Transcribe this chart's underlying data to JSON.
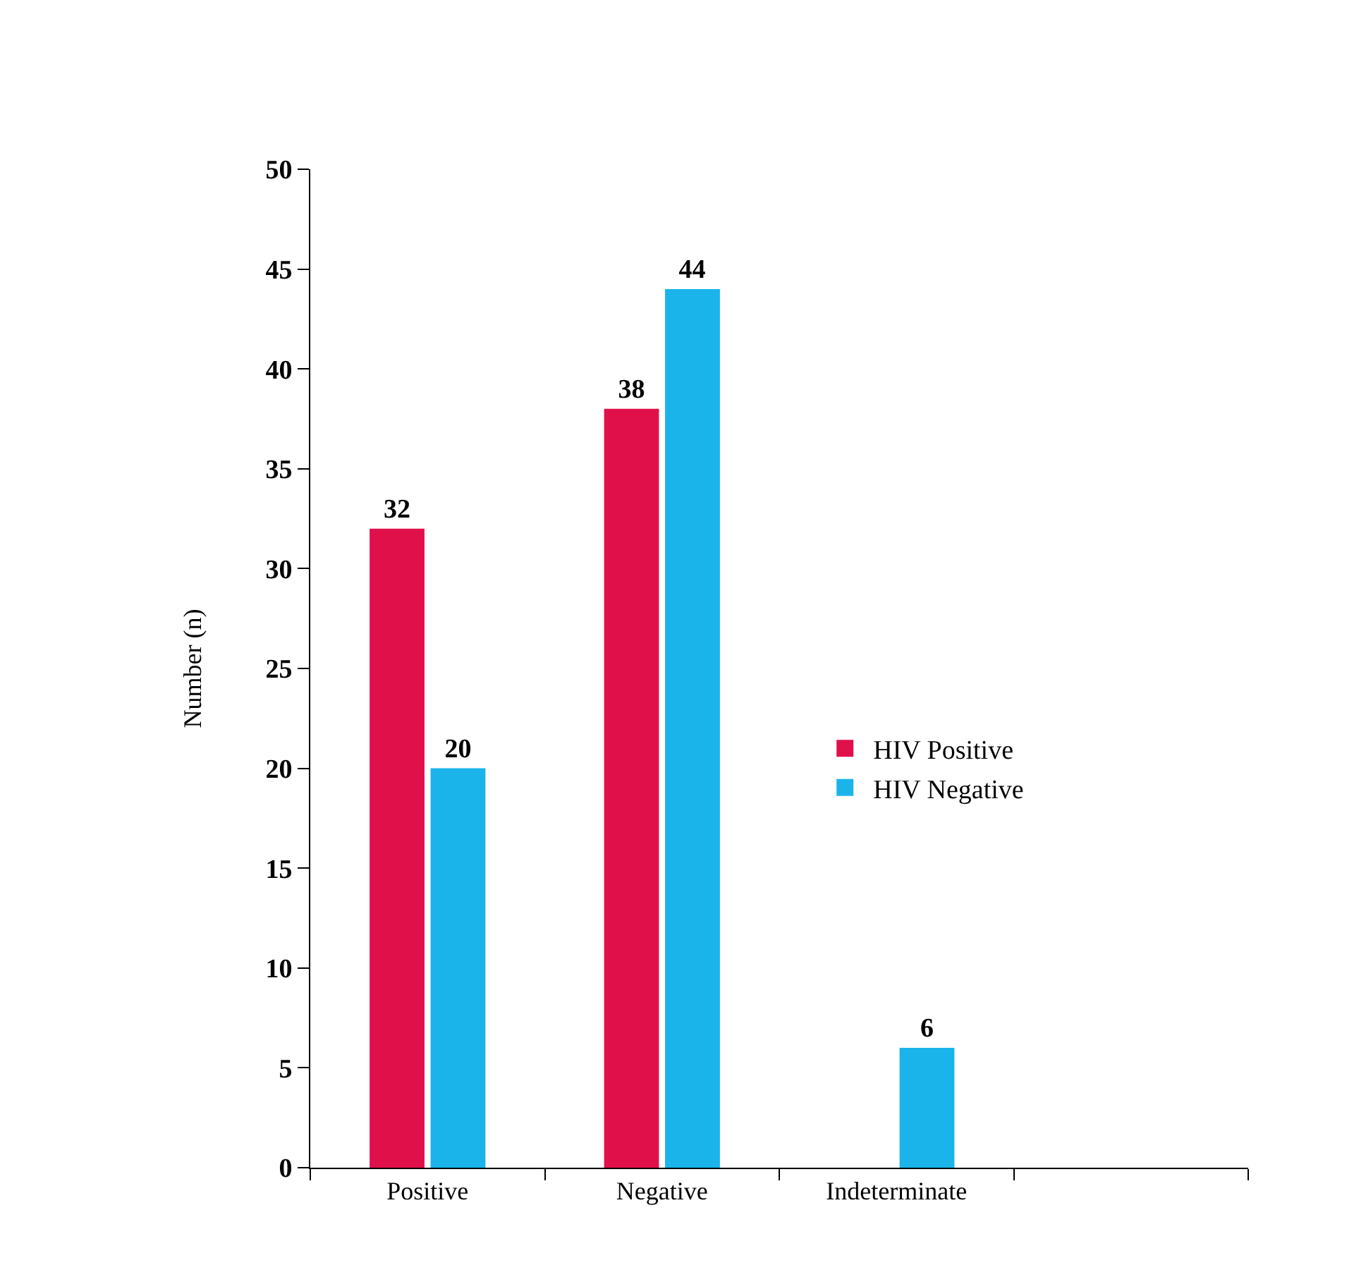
{
  "chart_data": {
    "type": "bar",
    "ylabel": "Number (n)",
    "categories": [
      "Positive",
      "Negative",
      "Indeterminate",
      null
    ],
    "series": [
      {
        "name": "HIV Positive",
        "color": "#e0104a",
        "values": [
          32,
          38,
          null,
          null
        ]
      },
      {
        "name": "HIV Negative",
        "color": "#1ab4ea",
        "values": [
          20,
          44,
          6,
          null
        ]
      }
    ],
    "ylim": [
      0,
      50
    ],
    "yticks": [
      0,
      5,
      10,
      15,
      20,
      25,
      30,
      35,
      40,
      45,
      50
    ],
    "data_labels": true,
    "legend": "right"
  }
}
